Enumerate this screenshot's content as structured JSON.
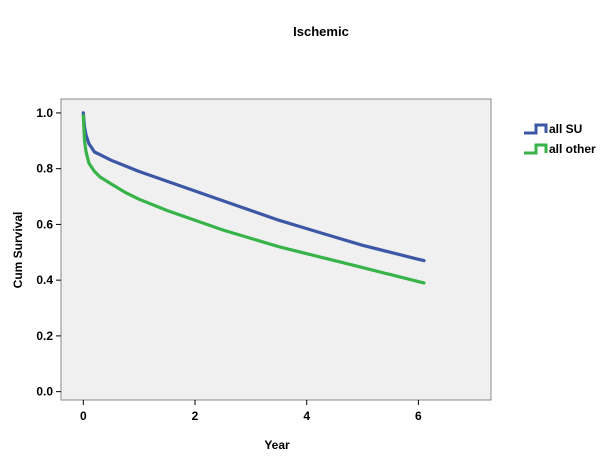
{
  "chart_data": {
    "type": "line",
    "title": "Ischemic",
    "xlabel": "Year",
    "ylabel": "Cum Survival",
    "xlim": [
      -0.4,
      7.3
    ],
    "ylim": [
      -0.03,
      1.05
    ],
    "xticks": [
      0,
      2,
      4,
      6
    ],
    "yticks": [
      0.0,
      0.2,
      0.4,
      0.6,
      0.8,
      1.0
    ],
    "xtick_labels": [
      "0",
      "2",
      "4",
      "6"
    ],
    "ytick_labels": [
      "0.0",
      "0.2",
      "0.4",
      "0.6",
      "0.8",
      "1.0"
    ],
    "grid": false,
    "legend_position": "right",
    "series": [
      {
        "name": "all SU",
        "color": "#3b57a6",
        "x": [
          0,
          0.02,
          0.05,
          0.1,
          0.2,
          0.3,
          0.5,
          0.75,
          1.0,
          1.5,
          2.0,
          2.5,
          3.0,
          3.5,
          4.0,
          4.5,
          5.0,
          5.5,
          6.0,
          6.1
        ],
        "y": [
          1.0,
          0.95,
          0.92,
          0.89,
          0.86,
          0.85,
          0.83,
          0.81,
          0.79,
          0.755,
          0.72,
          0.685,
          0.65,
          0.615,
          0.585,
          0.555,
          0.525,
          0.5,
          0.475,
          0.47
        ]
      },
      {
        "name": "all other",
        "color": "#37b34a",
        "x": [
          0,
          0.02,
          0.05,
          0.1,
          0.2,
          0.3,
          0.5,
          0.75,
          1.0,
          1.5,
          2.0,
          2.5,
          3.0,
          3.5,
          4.0,
          4.5,
          5.0,
          5.5,
          6.0,
          6.1
        ],
        "y": [
          0.99,
          0.9,
          0.86,
          0.82,
          0.79,
          0.77,
          0.745,
          0.715,
          0.69,
          0.65,
          0.615,
          0.58,
          0.55,
          0.52,
          0.495,
          0.47,
          0.445,
          0.42,
          0.395,
          0.39
        ]
      }
    ]
  }
}
